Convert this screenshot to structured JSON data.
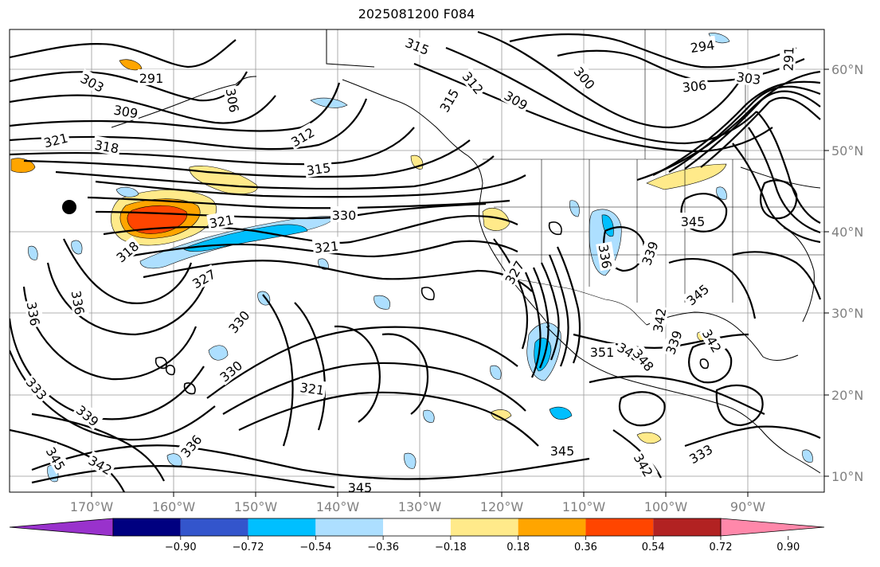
{
  "title": "2025081200 F084",
  "lat_labels": [
    "60°N",
    "50°N",
    "40°N",
    "30°N",
    "20°N",
    "10°N"
  ],
  "lon_labels": [
    "170°W",
    "160°W",
    "150°W",
    "140°W",
    "130°W",
    "120°W",
    "110°W",
    "100°W",
    "90°W"
  ],
  "colorbar": {
    "colors": [
      "#9932CC",
      "#000080",
      "#3355CC",
      "#00BFFF",
      "#ADDFFF",
      "#FFFFFF",
      "#FFEA8A",
      "#FFA500",
      "#FF4500",
      "#B22222",
      "#FF88AA"
    ],
    "tick_labels": [
      "−0.90",
      "−0.72",
      "−0.54",
      "−0.36",
      "−0.18",
      "0.18",
      "0.36",
      "0.54",
      "0.72",
      "0.90"
    ]
  },
  "contour_labels": [
    "303",
    "291",
    "309",
    "306",
    "315",
    "312",
    "315",
    "309",
    "300",
    "294",
    "291",
    "303",
    "306",
    "321",
    "318",
    "312",
    "315",
    "330",
    "321",
    "321",
    "318",
    "327",
    "336",
    "336",
    "330",
    "330",
    "321",
    "333",
    "339",
    "345",
    "342",
    "336",
    "345",
    "345",
    "327",
    "336",
    "339",
    "351",
    "345",
    "348",
    "342",
    "339",
    "342",
    "345",
    "345",
    "342",
    "333"
  ]
}
